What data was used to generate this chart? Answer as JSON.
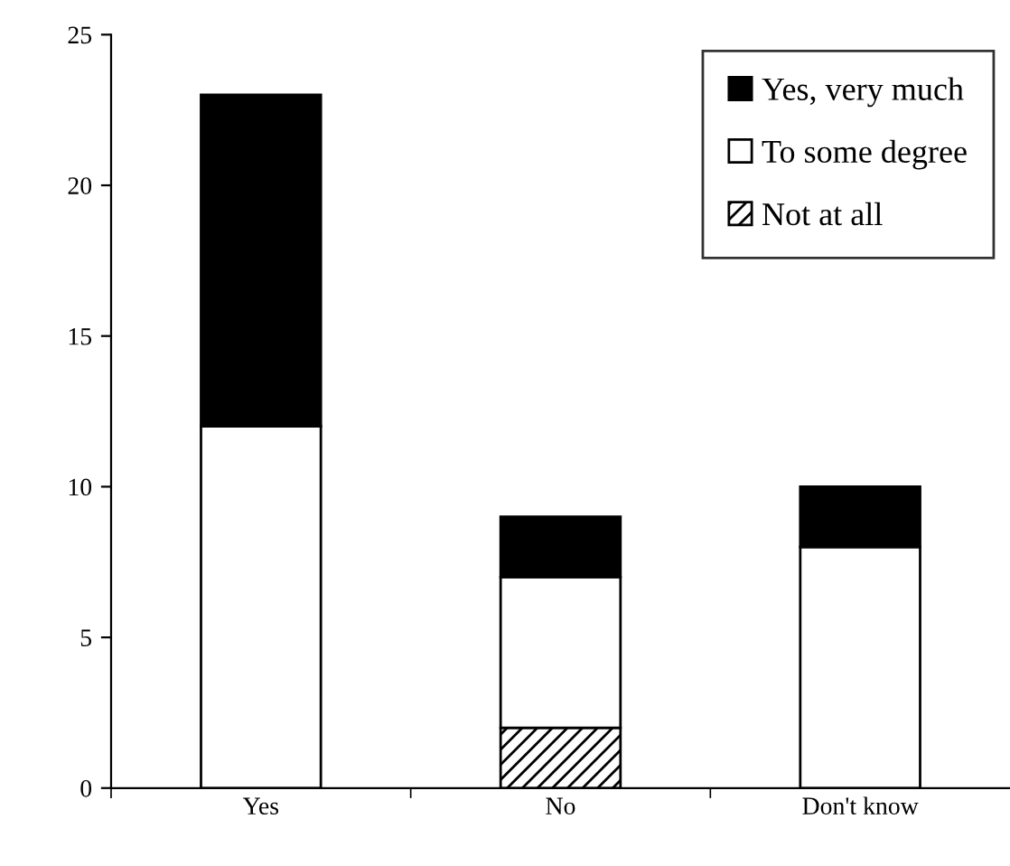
{
  "chart_data": {
    "type": "bar",
    "stacked": true,
    "categories": [
      "Yes",
      "No",
      "Don't know"
    ],
    "series": [
      {
        "name": "Not at all",
        "color": "#000000",
        "values": [
          0,
          2,
          0
        ]
      },
      {
        "name": "To some degree",
        "color": "#ffffff",
        "values": [
          12,
          5,
          8
        ]
      },
      {
        "name": "Yes, very much",
        "color": "#000000",
        "values": [
          11,
          2,
          2
        ]
      }
    ],
    "ylim": [
      0,
      25
    ],
    "yticks": [
      0,
      5,
      10,
      15,
      20,
      25
    ],
    "grid": false,
    "legend": "top right"
  }
}
